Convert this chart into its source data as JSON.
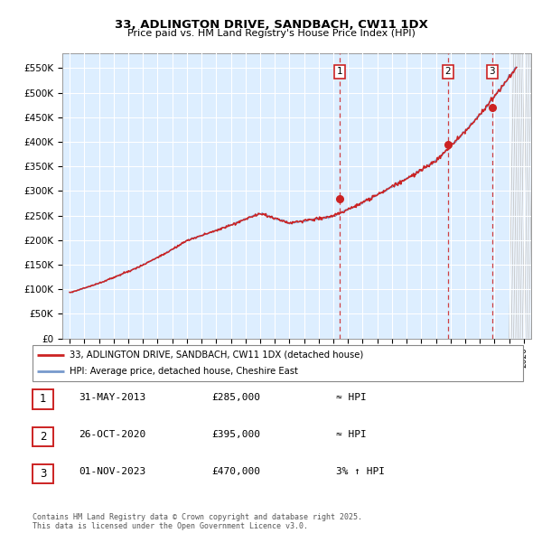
{
  "title1": "33, ADLINGTON DRIVE, SANDBACH, CW11 1DX",
  "title2": "Price paid vs. HM Land Registry's House Price Index (HPI)",
  "xlim_start": 1994.5,
  "xlim_end": 2026.5,
  "ylim_min": 0,
  "ylim_max": 580000,
  "yticks": [
    0,
    50000,
    100000,
    150000,
    200000,
    250000,
    300000,
    350000,
    400000,
    450000,
    500000,
    550000
  ],
  "ytick_labels": [
    "£0",
    "£50K",
    "£100K",
    "£150K",
    "£200K",
    "£250K",
    "£300K",
    "£350K",
    "£400K",
    "£450K",
    "£500K",
    "£550K"
  ],
  "hpi_color": "#7799cc",
  "price_color": "#cc2222",
  "background_color": "#ddeeff",
  "grid_color": "#ffffff",
  "sale_dates": [
    2013.42,
    2020.82,
    2023.84
  ],
  "sale_prices": [
    285000,
    395000,
    470000
  ],
  "sale_labels": [
    "1",
    "2",
    "3"
  ],
  "legend_label1": "33, ADLINGTON DRIVE, SANDBACH, CW11 1DX (detached house)",
  "legend_label2": "HPI: Average price, detached house, Cheshire East",
  "table_rows": [
    [
      "1",
      "31-MAY-2013",
      "£285,000",
      "≈ HPI"
    ],
    [
      "2",
      "26-OCT-2020",
      "£395,000",
      "≈ HPI"
    ],
    [
      "3",
      "01-NOV-2023",
      "£470,000",
      "3% ↑ HPI"
    ]
  ],
  "footnote": "Contains HM Land Registry data © Crown copyright and database right 2025.\nThis data is licensed under the Open Government Licence v3.0."
}
